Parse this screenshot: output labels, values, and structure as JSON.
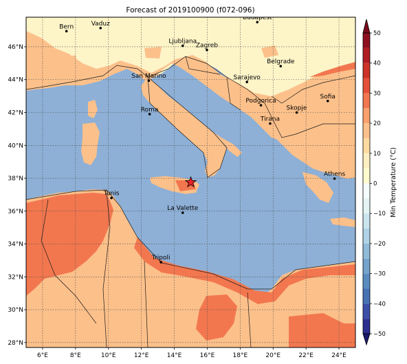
{
  "title": "Forecast of 2019100900 (f072-096)",
  "map": {
    "lon_range": [
      5,
      25
    ],
    "lat_range": [
      27.7,
      47.8
    ],
    "lon_ticks": [
      6,
      8,
      10,
      12,
      14,
      16,
      18,
      20,
      22,
      24
    ],
    "lon_tick_labels": [
      "6°E",
      "8°E",
      "10°E",
      "12°E",
      "14°E",
      "16°E",
      "18°E",
      "20°E",
      "22°E",
      "24°E"
    ],
    "lat_ticks": [
      28,
      30,
      32,
      34,
      36,
      38,
      40,
      42,
      44,
      46
    ],
    "lat_tick_labels": [
      "28°N",
      "30°N",
      "32°N",
      "34°N",
      "36°N",
      "38°N",
      "40°N",
      "42°N",
      "44°N",
      "46°N"
    ],
    "grid": true,
    "sea_color": "#8eb0d6",
    "marker": {
      "symbol": "star",
      "lon": 15.0,
      "lat": 37.75,
      "color": "#e8222a"
    }
  },
  "cities": [
    {
      "name": "Bern",
      "lon": 7.45,
      "lat": 46.95
    },
    {
      "name": "Vaduz",
      "lon": 9.52,
      "lat": 47.14
    },
    {
      "name": "Budapest",
      "lon": 19.04,
      "lat": 47.5
    },
    {
      "name": "Ljubljana",
      "lon": 14.51,
      "lat": 46.06
    },
    {
      "name": "Zagreb",
      "lon": 15.98,
      "lat": 45.81
    },
    {
      "name": "Belgrade",
      "lon": 20.46,
      "lat": 44.82
    },
    {
      "name": "San Marino",
      "lon": 12.45,
      "lat": 43.94
    },
    {
      "name": "Sarajevo",
      "lon": 18.41,
      "lat": 43.86
    },
    {
      "name": "Sofia",
      "lon": 23.32,
      "lat": 42.7
    },
    {
      "name": "Roma",
      "lon": 12.5,
      "lat": 41.9
    },
    {
      "name": "Podgorica",
      "lon": 19.26,
      "lat": 42.44
    },
    {
      "name": "Skopje",
      "lon": 21.43,
      "lat": 42.0
    },
    {
      "name": "Tirana",
      "lon": 19.82,
      "lat": 41.33
    },
    {
      "name": "Athens",
      "lon": 23.73,
      "lat": 37.98
    },
    {
      "name": "Tunis",
      "lon": 10.18,
      "lat": 36.8
    },
    {
      "name": "La Valette",
      "lon": 14.51,
      "lat": 35.9
    },
    {
      "name": "Tripoli",
      "lon": 13.19,
      "lat": 32.89
    }
  ],
  "colorbar": {
    "label": "Min Temperature (°C)",
    "ticks": [
      50,
      40,
      30,
      20,
      10,
      0,
      -10,
      -20,
      -30,
      -40,
      -50
    ],
    "tick_labels": [
      "50",
      "40",
      "30",
      "20",
      "10",
      "0",
      "−10",
      "−20",
      "−30",
      "−40",
      "−50"
    ],
    "levels": [
      -50,
      -45,
      -40,
      -35,
      -30,
      -25,
      -20,
      -15,
      -10,
      -5,
      0,
      5,
      10,
      15,
      20,
      25,
      30,
      35,
      40,
      45,
      50
    ],
    "colors": [
      "#2c2f8f",
      "#3e4fa8",
      "#4773b4",
      "#5b8cc0",
      "#76a3cd",
      "#92bbda",
      "#afd2e6",
      "#cbe5ef",
      "#e4f3f4",
      "#f6fcfb",
      "#fefccf",
      "#fcefc1",
      "#fddba0",
      "#fcc08a",
      "#f9a06d",
      "#f2774f",
      "#e45139",
      "#cd3326",
      "#b01d22",
      "#8e0f1f"
    ],
    "extend": "both"
  },
  "fields": {
    "cold_land": "#fdf4c8",
    "mild_land": "#fcc08a",
    "warm": "#f2774f"
  }
}
